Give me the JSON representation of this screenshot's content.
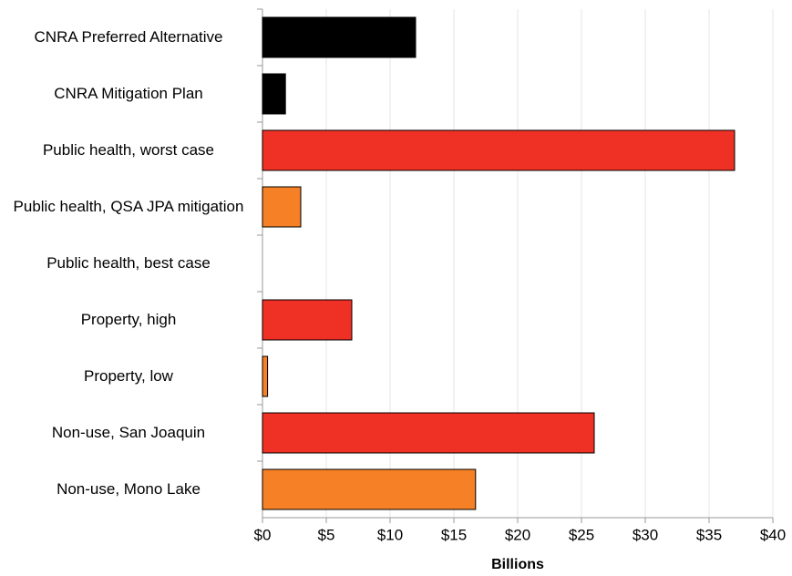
{
  "chart_data": {
    "type": "bar",
    "orientation": "horizontal",
    "categories": [
      "CNRA Preferred Alternative",
      "CNRA Mitigation Plan",
      "Public health, worst case",
      "Public health, QSA JPA mitigation",
      "Public health, best case",
      "Property, high",
      "Property, low",
      "Non-use, San Joaquin",
      "Non-use, Mono Lake"
    ],
    "values": [
      12,
      1.8,
      37,
      3,
      0,
      7,
      0.4,
      26,
      16.7
    ],
    "colors": [
      "#000000",
      "#000000",
      "#ee3124",
      "#f58025",
      "#f58025",
      "#ee3124",
      "#f58025",
      "#ee3124",
      "#f58025"
    ],
    "xlabel": "Billions",
    "xlim": [
      0,
      40
    ],
    "xticks": [
      {
        "value": 0,
        "label": "$0"
      },
      {
        "value": 5,
        "label": "$5"
      },
      {
        "value": 10,
        "label": "$10"
      },
      {
        "value": 15,
        "label": "$15"
      },
      {
        "value": 20,
        "label": "$20"
      },
      {
        "value": 25,
        "label": "$25"
      },
      {
        "value": 30,
        "label": "$30"
      },
      {
        "value": 35,
        "label": "$35"
      },
      {
        "value": 40,
        "label": "$40"
      }
    ],
    "grid": true
  }
}
